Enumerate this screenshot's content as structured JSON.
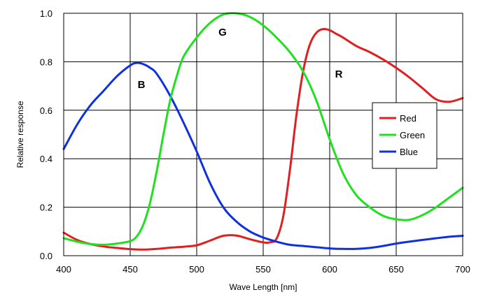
{
  "chart_data": {
    "type": "line",
    "title": "",
    "xlabel": "Wave Length [nm]",
    "ylabel": "Relative response",
    "xlim": [
      400,
      700
    ],
    "ylim": [
      0.0,
      1.0
    ],
    "x_ticks": [
      400,
      450,
      500,
      550,
      600,
      650,
      700
    ],
    "x_tick_labels": [
      "400",
      "450",
      "500",
      "550",
      "600",
      "650",
      "700"
    ],
    "y_ticks": [
      0.0,
      0.2,
      0.4,
      0.6,
      0.8,
      1.0
    ],
    "y_tick_labels": [
      "0.0",
      "0.2",
      "0.4",
      "0.6",
      "0.8",
      "1.0"
    ],
    "grid": true,
    "legend_position": "right",
    "series": [
      {
        "name": "Red",
        "color": "#e02020",
        "curve_label": "R",
        "x": [
          400,
          410,
          420,
          430,
          440,
          450,
          460,
          470,
          480,
          490,
          500,
          510,
          520,
          530,
          540,
          550,
          555,
          560,
          565,
          570,
          575,
          580,
          585,
          590,
          595,
          600,
          605,
          610,
          620,
          630,
          640,
          650,
          660,
          670,
          680,
          690,
          700
        ],
        "y": [
          0.095,
          0.065,
          0.048,
          0.038,
          0.032,
          0.027,
          0.025,
          0.028,
          0.033,
          0.037,
          0.043,
          0.062,
          0.082,
          0.083,
          0.068,
          0.055,
          0.055,
          0.07,
          0.16,
          0.35,
          0.58,
          0.76,
          0.87,
          0.92,
          0.935,
          0.93,
          0.915,
          0.9,
          0.865,
          0.84,
          0.81,
          0.775,
          0.735,
          0.69,
          0.645,
          0.635,
          0.65
        ]
      },
      {
        "name": "Green",
        "color": "#20e020",
        "curve_label": "G",
        "x": [
          400,
          410,
          420,
          430,
          440,
          450,
          455,
          460,
          465,
          470,
          475,
          480,
          485,
          490,
          500,
          510,
          520,
          530,
          540,
          550,
          560,
          570,
          580,
          590,
          600,
          610,
          620,
          630,
          640,
          650,
          660,
          670,
          680,
          690,
          700
        ],
        "y": [
          0.072,
          0.058,
          0.048,
          0.045,
          0.05,
          0.06,
          0.08,
          0.13,
          0.22,
          0.35,
          0.5,
          0.64,
          0.74,
          0.82,
          0.9,
          0.96,
          0.995,
          1.0,
          0.985,
          0.95,
          0.9,
          0.84,
          0.76,
          0.64,
          0.48,
          0.34,
          0.25,
          0.2,
          0.165,
          0.15,
          0.148,
          0.168,
          0.2,
          0.24,
          0.28
        ]
      },
      {
        "name": "Blue",
        "color": "#1030e0",
        "curve_label": "B",
        "x": [
          400,
          410,
          420,
          430,
          440,
          450,
          455,
          460,
          465,
          470,
          480,
          490,
          500,
          510,
          520,
          530,
          540,
          550,
          560,
          570,
          580,
          590,
          600,
          610,
          620,
          630,
          640,
          650,
          660,
          670,
          680,
          690,
          700
        ],
        "y": [
          0.44,
          0.54,
          0.62,
          0.68,
          0.74,
          0.785,
          0.795,
          0.79,
          0.775,
          0.75,
          0.66,
          0.55,
          0.43,
          0.3,
          0.2,
          0.14,
          0.1,
          0.075,
          0.058,
          0.045,
          0.04,
          0.035,
          0.03,
          0.028,
          0.028,
          0.032,
          0.04,
          0.05,
          0.058,
          0.065,
          0.072,
          0.078,
          0.082
        ]
      }
    ]
  }
}
